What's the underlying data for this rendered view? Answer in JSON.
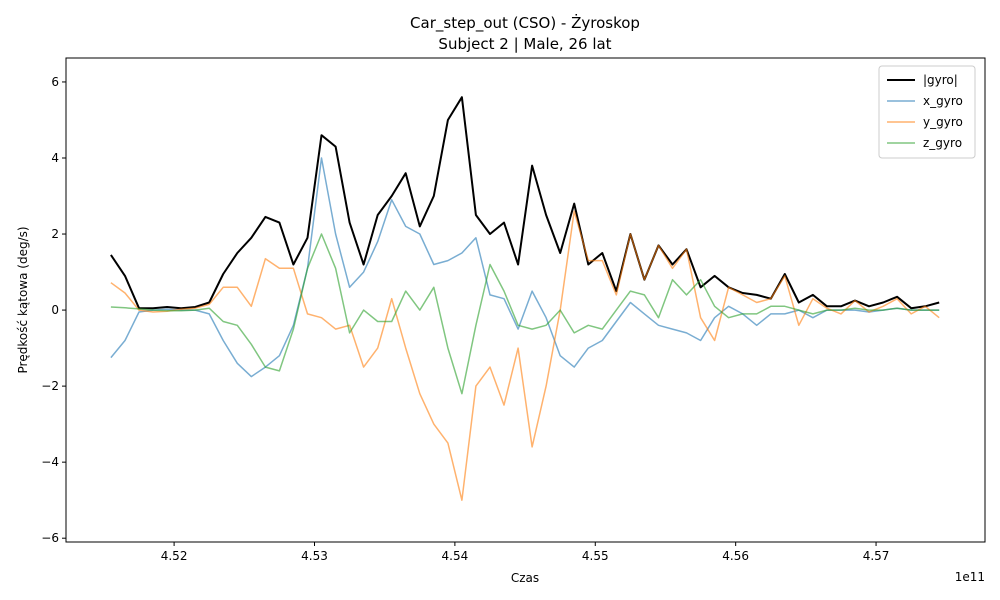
{
  "chart_data": {
    "type": "line",
    "title": "Car_step_out (CSO) - Żyroskop",
    "subtitle": "Subject 2 | Male, 26 lat",
    "x_label": "Czas",
    "y_label": "Prędkość kątowa (deg/s)",
    "x_offset_label": "1e11",
    "xlim": [
      451230000000,
      457776000000
    ],
    "ylim": [
      -6.1,
      6.63
    ],
    "xticks": [
      {
        "value": 452000000000,
        "label": "4.52"
      },
      {
        "value": 453000000000,
        "label": "4.53"
      },
      {
        "value": 454000000000,
        "label": "4.54"
      },
      {
        "value": 455000000000,
        "label": "4.55"
      },
      {
        "value": 456000000000,
        "label": "4.56"
      },
      {
        "value": 457000000000,
        "label": "4.57"
      }
    ],
    "yticks": [
      {
        "value": -6,
        "label": "−6"
      },
      {
        "value": -4,
        "label": "−4"
      },
      {
        "value": -2,
        "label": "−2"
      },
      0,
      2,
      4,
      6
    ],
    "grid": false,
    "legend": "upper right",
    "x": [
      451550000000,
      451650000000,
      451750000000,
      451850000000,
      451950000000,
      452050000000,
      452150000000,
      452250000000,
      452350000000,
      452450000000,
      452550000000,
      452650000000,
      452750000000,
      452850000000,
      452950000000,
      453050000000,
      453150000000,
      453250000000,
      453350000000,
      453450000000,
      453550000000,
      453650000000,
      453750000000,
      453850000000,
      453950000000,
      454050000000,
      454150000000,
      454250000000,
      454350000000,
      454450000000,
      454550000000,
      454650000000,
      454750000000,
      454850000000,
      454950000000,
      455050000000,
      455150000000,
      455250000000,
      455350000000,
      455450000000,
      455550000000,
      455650000000,
      455750000000,
      455850000000,
      455950000000,
      456050000000,
      456150000000,
      456250000000,
      456350000000,
      456450000000,
      456550000000,
      456650000000,
      456750000000,
      456850000000,
      456950000000,
      457050000000,
      457150000000,
      457250000000,
      457350000000,
      457450000000
    ],
    "series": [
      {
        "name": "|gyro|",
        "color": "#000000",
        "width": 2,
        "opacity": 1,
        "values": [
          1.45,
          0.9,
          0.05,
          0.05,
          0.08,
          0.05,
          0.08,
          0.2,
          0.95,
          1.5,
          1.9,
          2.45,
          2.3,
          1.2,
          1.9,
          4.6,
          4.3,
          2.3,
          1.2,
          2.5,
          3.0,
          3.6,
          2.2,
          3.0,
          5.0,
          5.6,
          2.5,
          2.0,
          2.3,
          1.2,
          3.8,
          2.5,
          1.5,
          2.8,
          1.2,
          1.5,
          0.5,
          2.0,
          0.8,
          1.7,
          1.2,
          1.6,
          0.6,
          0.9,
          0.6,
          0.45,
          0.4,
          0.3,
          0.95,
          0.2,
          0.4,
          0.1,
          0.1,
          0.25,
          0.1,
          0.2,
          0.35,
          0.05,
          0.1,
          0.2
        ]
      },
      {
        "name": "x_gyro",
        "color": "#1f77b4",
        "width": 1.5,
        "opacity": 0.6,
        "values": [
          -1.25,
          -0.8,
          -0.05,
          0.0,
          0.02,
          0.0,
          0.0,
          -0.1,
          -0.8,
          -1.4,
          -1.75,
          -1.5,
          -1.2,
          -0.4,
          1.1,
          4.0,
          2.0,
          0.6,
          1.0,
          1.8,
          2.9,
          2.2,
          2.0,
          1.2,
          1.3,
          1.5,
          1.9,
          0.4,
          0.3,
          -0.5,
          0.5,
          -0.2,
          -1.2,
          -1.5,
          -1.0,
          -0.8,
          -0.3,
          0.2,
          -0.1,
          -0.4,
          -0.5,
          -0.6,
          -0.8,
          -0.2,
          0.1,
          -0.1,
          -0.4,
          -0.1,
          -0.1,
          0.0,
          -0.2,
          0.0,
          0.0,
          0.0,
          -0.05,
          0.0,
          0.05,
          0.0,
          0.0,
          0.0
        ]
      },
      {
        "name": "y_gyro",
        "color": "#ff7f0e",
        "width": 1.5,
        "opacity": 0.6,
        "values": [
          0.72,
          0.45,
          0.0,
          -0.05,
          -0.03,
          0.02,
          0.05,
          0.15,
          0.6,
          0.6,
          0.1,
          1.35,
          1.1,
          1.1,
          -0.1,
          -0.2,
          -0.5,
          -0.4,
          -1.5,
          -1.0,
          0.3,
          -1.0,
          -2.2,
          -3.0,
          -3.5,
          -5.0,
          -2.0,
          -1.5,
          -2.5,
          -1.0,
          -3.6,
          -2.0,
          0.0,
          2.6,
          1.3,
          1.3,
          0.4,
          2.0,
          0.8,
          1.7,
          1.1,
          1.6,
          -0.2,
          -0.8,
          0.6,
          0.4,
          0.2,
          0.3,
          0.9,
          -0.4,
          0.3,
          0.05,
          -0.1,
          0.25,
          -0.05,
          0.1,
          0.3,
          -0.1,
          0.1,
          -0.2
        ]
      },
      {
        "name": "z_gyro",
        "color": "#2ca02c",
        "width": 1.5,
        "opacity": 0.6,
        "values": [
          0.08,
          0.06,
          0.03,
          0.0,
          -0.02,
          -0.02,
          0.0,
          0.05,
          -0.3,
          -0.4,
          -0.9,
          -1.5,
          -1.6,
          -0.5,
          1.1,
          2.0,
          1.1,
          -0.6,
          0.0,
          -0.3,
          -0.3,
          0.5,
          0.0,
          0.6,
          -1.0,
          -2.2,
          -0.4,
          1.2,
          0.5,
          -0.4,
          -0.5,
          -0.4,
          0.0,
          -0.6,
          -0.4,
          -0.5,
          0.0,
          0.5,
          0.4,
          -0.2,
          0.8,
          0.4,
          0.8,
          0.1,
          -0.2,
          -0.1,
          -0.1,
          0.1,
          0.1,
          0.0,
          -0.1,
          0.0,
          0.0,
          0.05,
          0.0,
          0.0,
          0.05,
          0.0,
          0.0,
          0.0
        ]
      }
    ]
  }
}
